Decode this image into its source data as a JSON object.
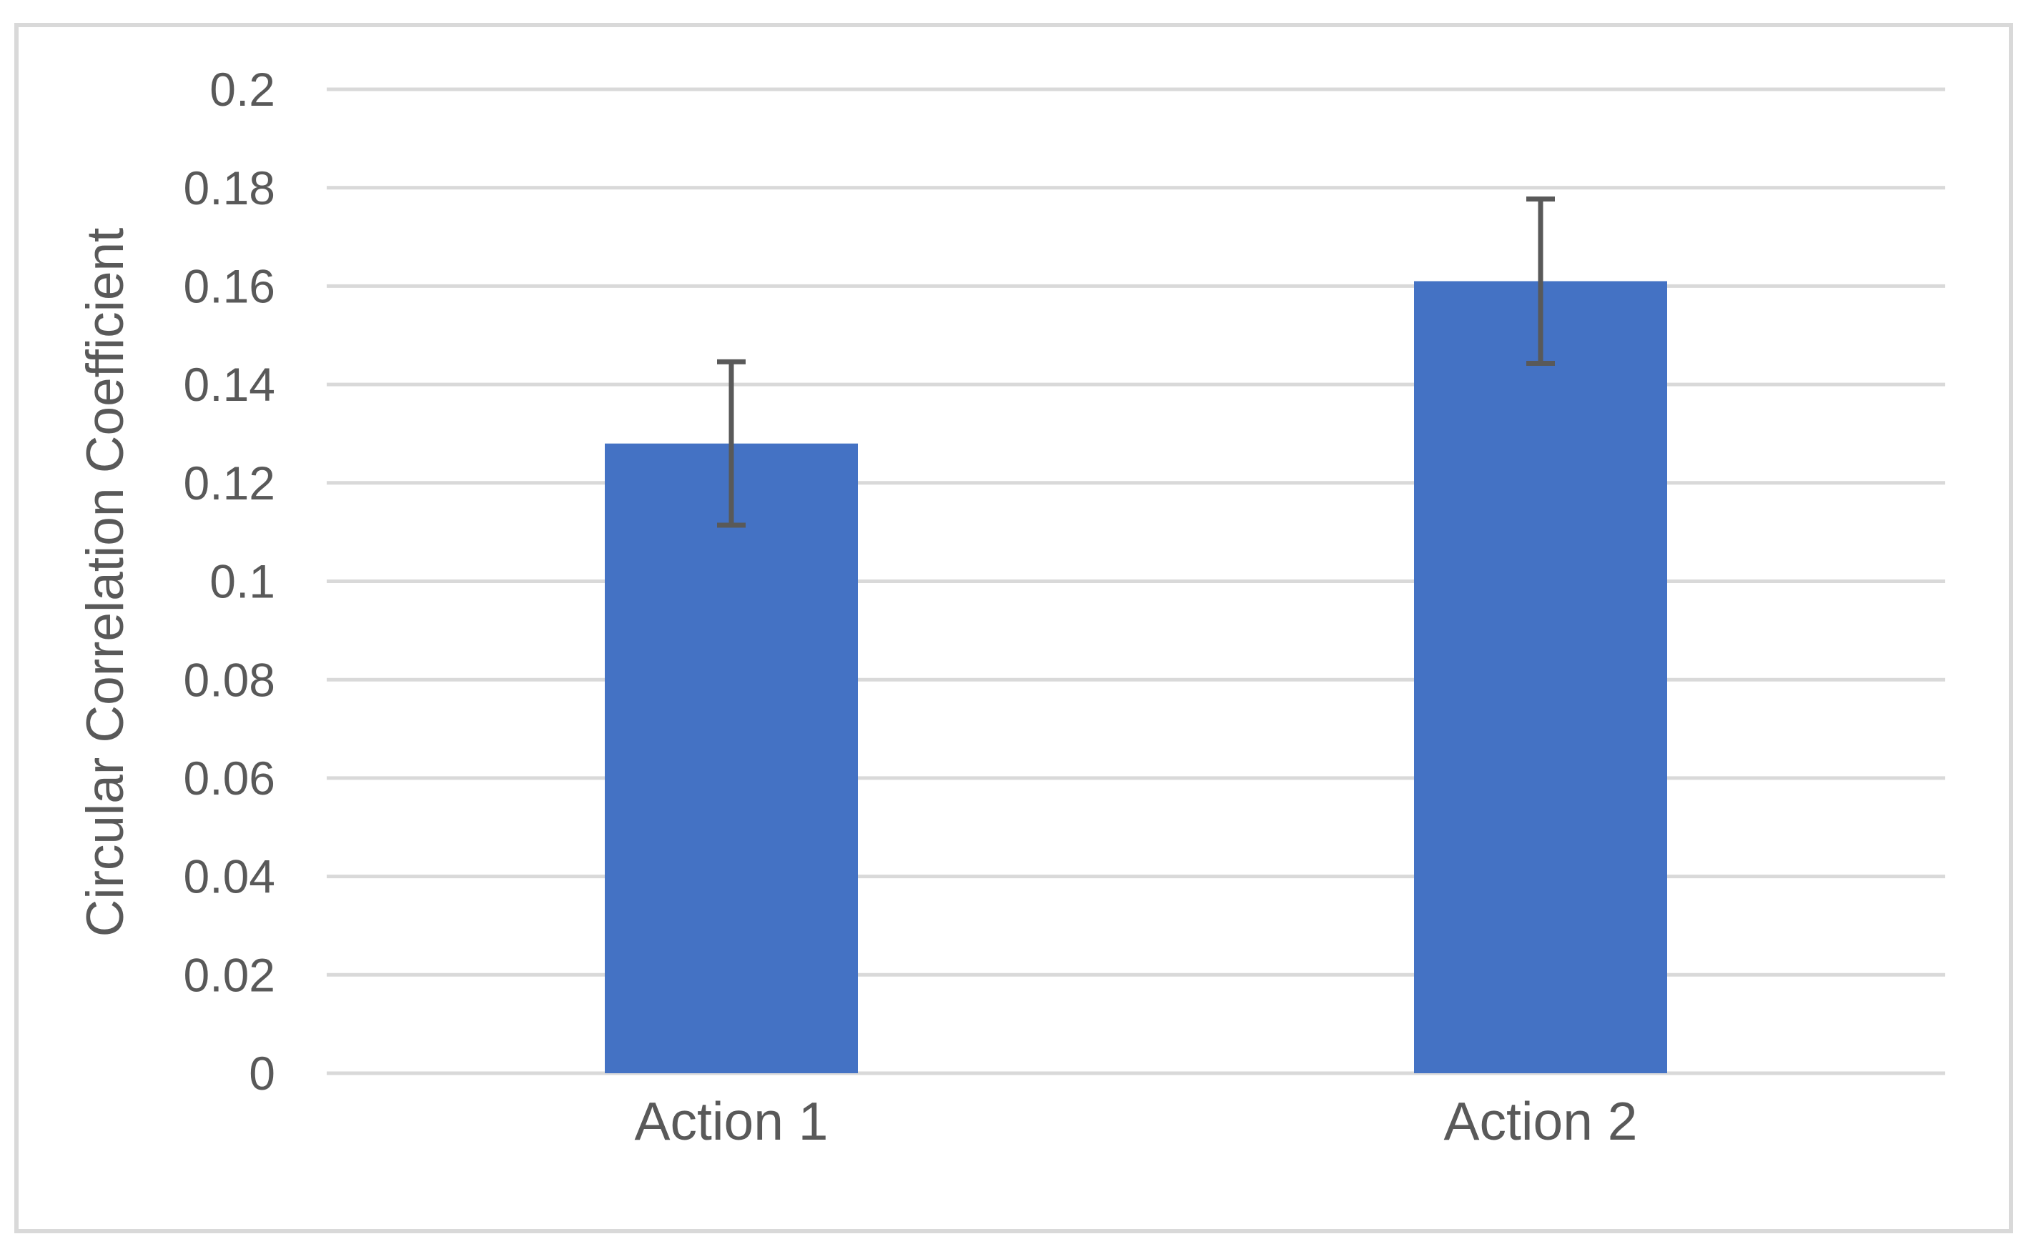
{
  "figure": {
    "background": "#FFFFFF",
    "border_color": "#D9D9D9"
  },
  "chart_data": {
    "type": "bar",
    "title": "",
    "categories": [
      "Action 1",
      "Action 2"
    ],
    "values": [
      0.128,
      0.161
    ],
    "error_bars": [
      0.0166,
      0.0167
    ],
    "xlabel": "",
    "ylabel": "Circular Correlation Coefficient",
    "ylim": [
      0,
      0.2
    ],
    "ytick_step": 0.02,
    "ytick_labels": [
      "0",
      "0.02",
      "0.04",
      "0.06",
      "0.08",
      "0.1",
      "0.12",
      "0.14",
      "0.16",
      "0.18",
      "0.2"
    ],
    "grid": true,
    "legend": "none",
    "colors": {
      "bar": "#4472C4",
      "error_bar": "#595959",
      "gridline": "#D9D9D9",
      "text": "#595959"
    }
  }
}
